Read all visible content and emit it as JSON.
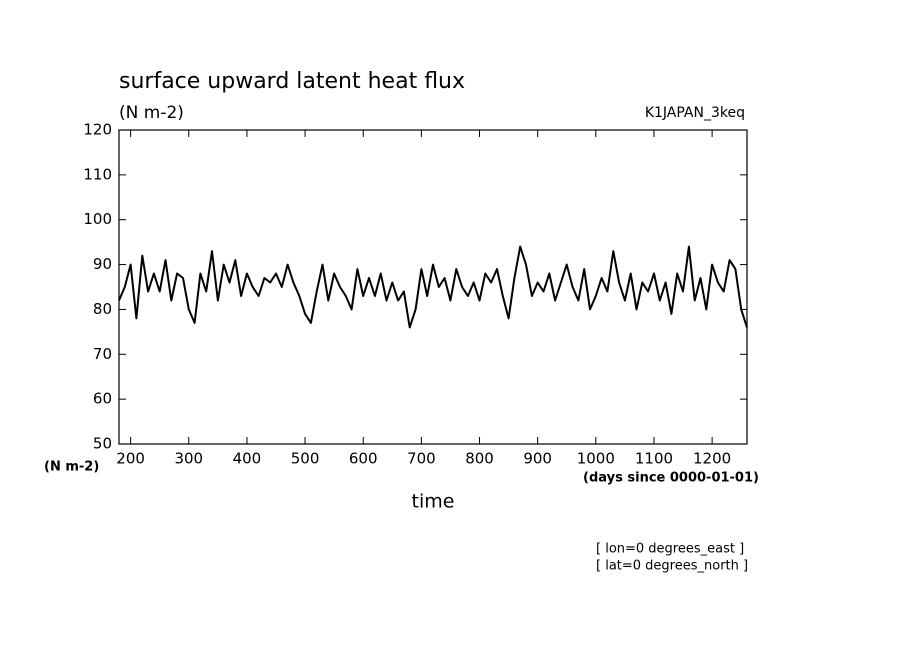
{
  "chart_data": {
    "type": "line",
    "title": "surface upward latent heat flux",
    "units_label": "(N m-2)",
    "dataset_label": "K1JAPAN_3keq",
    "y_unit_label": "(N m-2)",
    "x_unit_label": "(days since 0000-01-01)",
    "xlabel": "time",
    "annotations": [
      "[ lon=0 degrees_east ]",
      "[ lat=0 degrees_north ]"
    ],
    "x": [
      180,
      190,
      200,
      210,
      220,
      230,
      240,
      250,
      260,
      270,
      280,
      290,
      300,
      310,
      320,
      330,
      340,
      350,
      360,
      370,
      380,
      390,
      400,
      410,
      420,
      430,
      440,
      450,
      460,
      470,
      480,
      490,
      500,
      510,
      520,
      530,
      540,
      550,
      560,
      570,
      580,
      590,
      600,
      610,
      620,
      630,
      640,
      650,
      660,
      670,
      680,
      690,
      700,
      710,
      720,
      730,
      740,
      750,
      760,
      770,
      780,
      790,
      800,
      810,
      820,
      830,
      840,
      850,
      860,
      870,
      880,
      890,
      900,
      910,
      920,
      930,
      940,
      950,
      960,
      970,
      980,
      990,
      1000,
      1010,
      1020,
      1030,
      1040,
      1050,
      1060,
      1070,
      1080,
      1090,
      1100,
      1110,
      1120,
      1130,
      1140,
      1150,
      1160,
      1170,
      1180,
      1190,
      1200,
      1210,
      1220,
      1230,
      1240,
      1250,
      1260
    ],
    "series": [
      {
        "color": "#000000",
        "values": [
          82,
          85,
          90,
          78,
          92,
          84,
          88,
          84,
          91,
          82,
          88,
          87,
          80,
          77,
          88,
          84,
          93,
          82,
          90,
          86,
          91,
          83,
          88,
          85,
          83,
          87,
          86,
          88,
          85,
          90,
          86,
          83,
          79,
          77,
          84,
          90,
          82,
          88,
          85,
          83,
          80,
          89,
          83,
          87,
          83,
          88,
          82,
          86,
          82,
          84,
          76,
          80,
          89,
          83,
          90,
          85,
          87,
          82,
          89,
          85,
          83,
          86,
          82,
          88,
          86,
          89,
          83,
          78,
          87,
          94,
          90,
          83,
          86,
          84,
          88,
          82,
          86,
          90,
          85,
          82,
          89,
          80,
          83,
          87,
          84,
          93,
          86,
          82,
          88,
          80,
          86,
          84,
          88,
          82,
          86,
          79,
          88,
          84,
          94,
          82,
          87,
          80,
          90,
          86,
          84,
          91,
          89,
          80,
          76
        ]
      }
    ],
    "xlim": [
      180,
      1260
    ],
    "ylim": [
      50,
      120
    ],
    "xticks": [
      200,
      300,
      400,
      500,
      600,
      700,
      800,
      900,
      1000,
      1100,
      1200
    ],
    "yticks": [
      50,
      60,
      70,
      80,
      90,
      100,
      110,
      120
    ]
  }
}
